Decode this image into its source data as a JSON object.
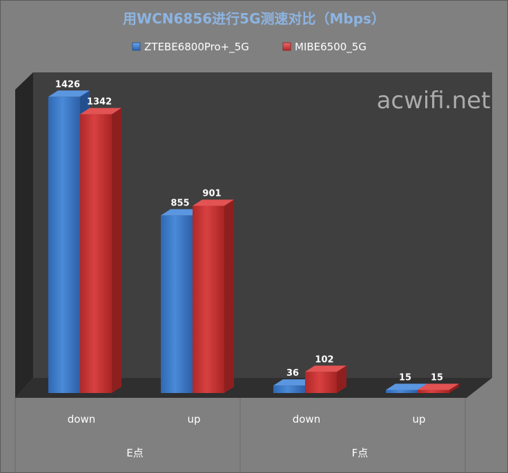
{
  "chart_data": {
    "type": "bar",
    "title": "用WCN6856进行5G测速对比（Mbps）",
    "groups": [
      "E点",
      "F点"
    ],
    "categories": [
      "down",
      "up",
      "down",
      "up"
    ],
    "series": [
      {
        "name": "ZTEBE6800Pro+_5G",
        "values": [
          1426,
          855,
          36,
          15
        ],
        "color": "#3a78c8"
      },
      {
        "name": "MIBE6500_5G",
        "values": [
          1342,
          901,
          102,
          15
        ],
        "color": "#c83232"
      }
    ],
    "ylim": [
      0,
      1500
    ],
    "legend_position": "top",
    "grid": false,
    "watermark": "acwifi.net"
  }
}
